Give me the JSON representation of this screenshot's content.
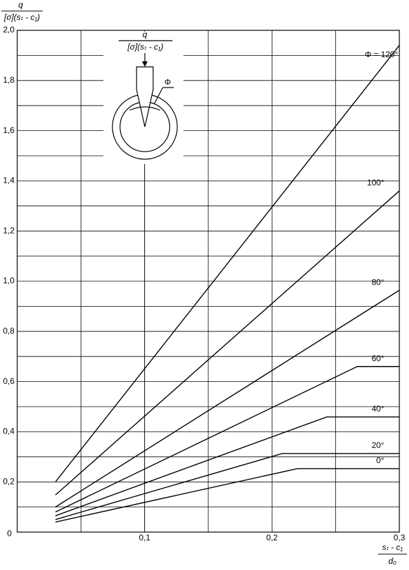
{
  "chart_data": {
    "type": "line",
    "ylabel": {
      "numerator": "q",
      "denominator": "[σ](sₜ - c₁)"
    },
    "xlabel": {
      "numerator": "sₜ - c₁",
      "denominator": "d₀"
    },
    "inset": {
      "numerator": "q",
      "denominator": "[σ](sₜ - c₁)",
      "angle": "Φ"
    },
    "xlim": [
      0,
      0.3
    ],
    "ylim": [
      0,
      2.0
    ],
    "xticks": [
      {
        "value": 0.1,
        "label": "0,1"
      },
      {
        "value": 0.2,
        "label": "0,2"
      },
      {
        "value": 0.3,
        "label": "0,3"
      }
    ],
    "yticks": [
      {
        "value": 0,
        "label": "0"
      },
      {
        "value": 0.2,
        "label": "0,2"
      },
      {
        "value": 0.4,
        "label": "0,4"
      },
      {
        "value": 0.6,
        "label": "0,6"
      },
      {
        "value": 0.8,
        "label": "0,8"
      },
      {
        "value": 1.0,
        "label": "1,0"
      },
      {
        "value": 1.2,
        "label": "1,2"
      },
      {
        "value": 1.4,
        "label": "1,4"
      },
      {
        "value": 1.6,
        "label": "1,6"
      },
      {
        "value": 1.8,
        "label": "1,8"
      },
      {
        "value": 2.0,
        "label": "2,0"
      }
    ],
    "x_minor_grid": [
      0.05,
      0.15,
      0.25
    ],
    "y_minor_grid": [
      0.1,
      0.3,
      0.5,
      0.7,
      0.9,
      1.1,
      1.3,
      1.5,
      1.7,
      1.9
    ],
    "grid": true,
    "color": "#000000",
    "series": [
      {
        "name": "Φ = 120°",
        "x": [
          0.03,
          0.3
        ],
        "values": [
          0.2,
          1.94
        ]
      },
      {
        "name": "100°",
        "x": [
          0.03,
          0.3
        ],
        "values": [
          0.148,
          1.36
        ]
      },
      {
        "name": "80°",
        "x": [
          0.03,
          0.3
        ],
        "values": [
          0.1,
          0.964
        ]
      },
      {
        "name": "60°",
        "x": [
          0.03,
          0.267,
          0.3
        ],
        "values": [
          0.08,
          0.66,
          0.66
        ]
      },
      {
        "name": "40°",
        "x": [
          0.03,
          0.243,
          0.3
        ],
        "values": [
          0.065,
          0.459,
          0.459
        ]
      },
      {
        "name": "20°",
        "x": [
          0.03,
          0.208,
          0.3
        ],
        "values": [
          0.05,
          0.313,
          0.313
        ]
      },
      {
        "name": "0°",
        "x": [
          0.03,
          0.22,
          0.3
        ],
        "values": [
          0.04,
          0.253,
          0.253
        ]
      }
    ]
  }
}
